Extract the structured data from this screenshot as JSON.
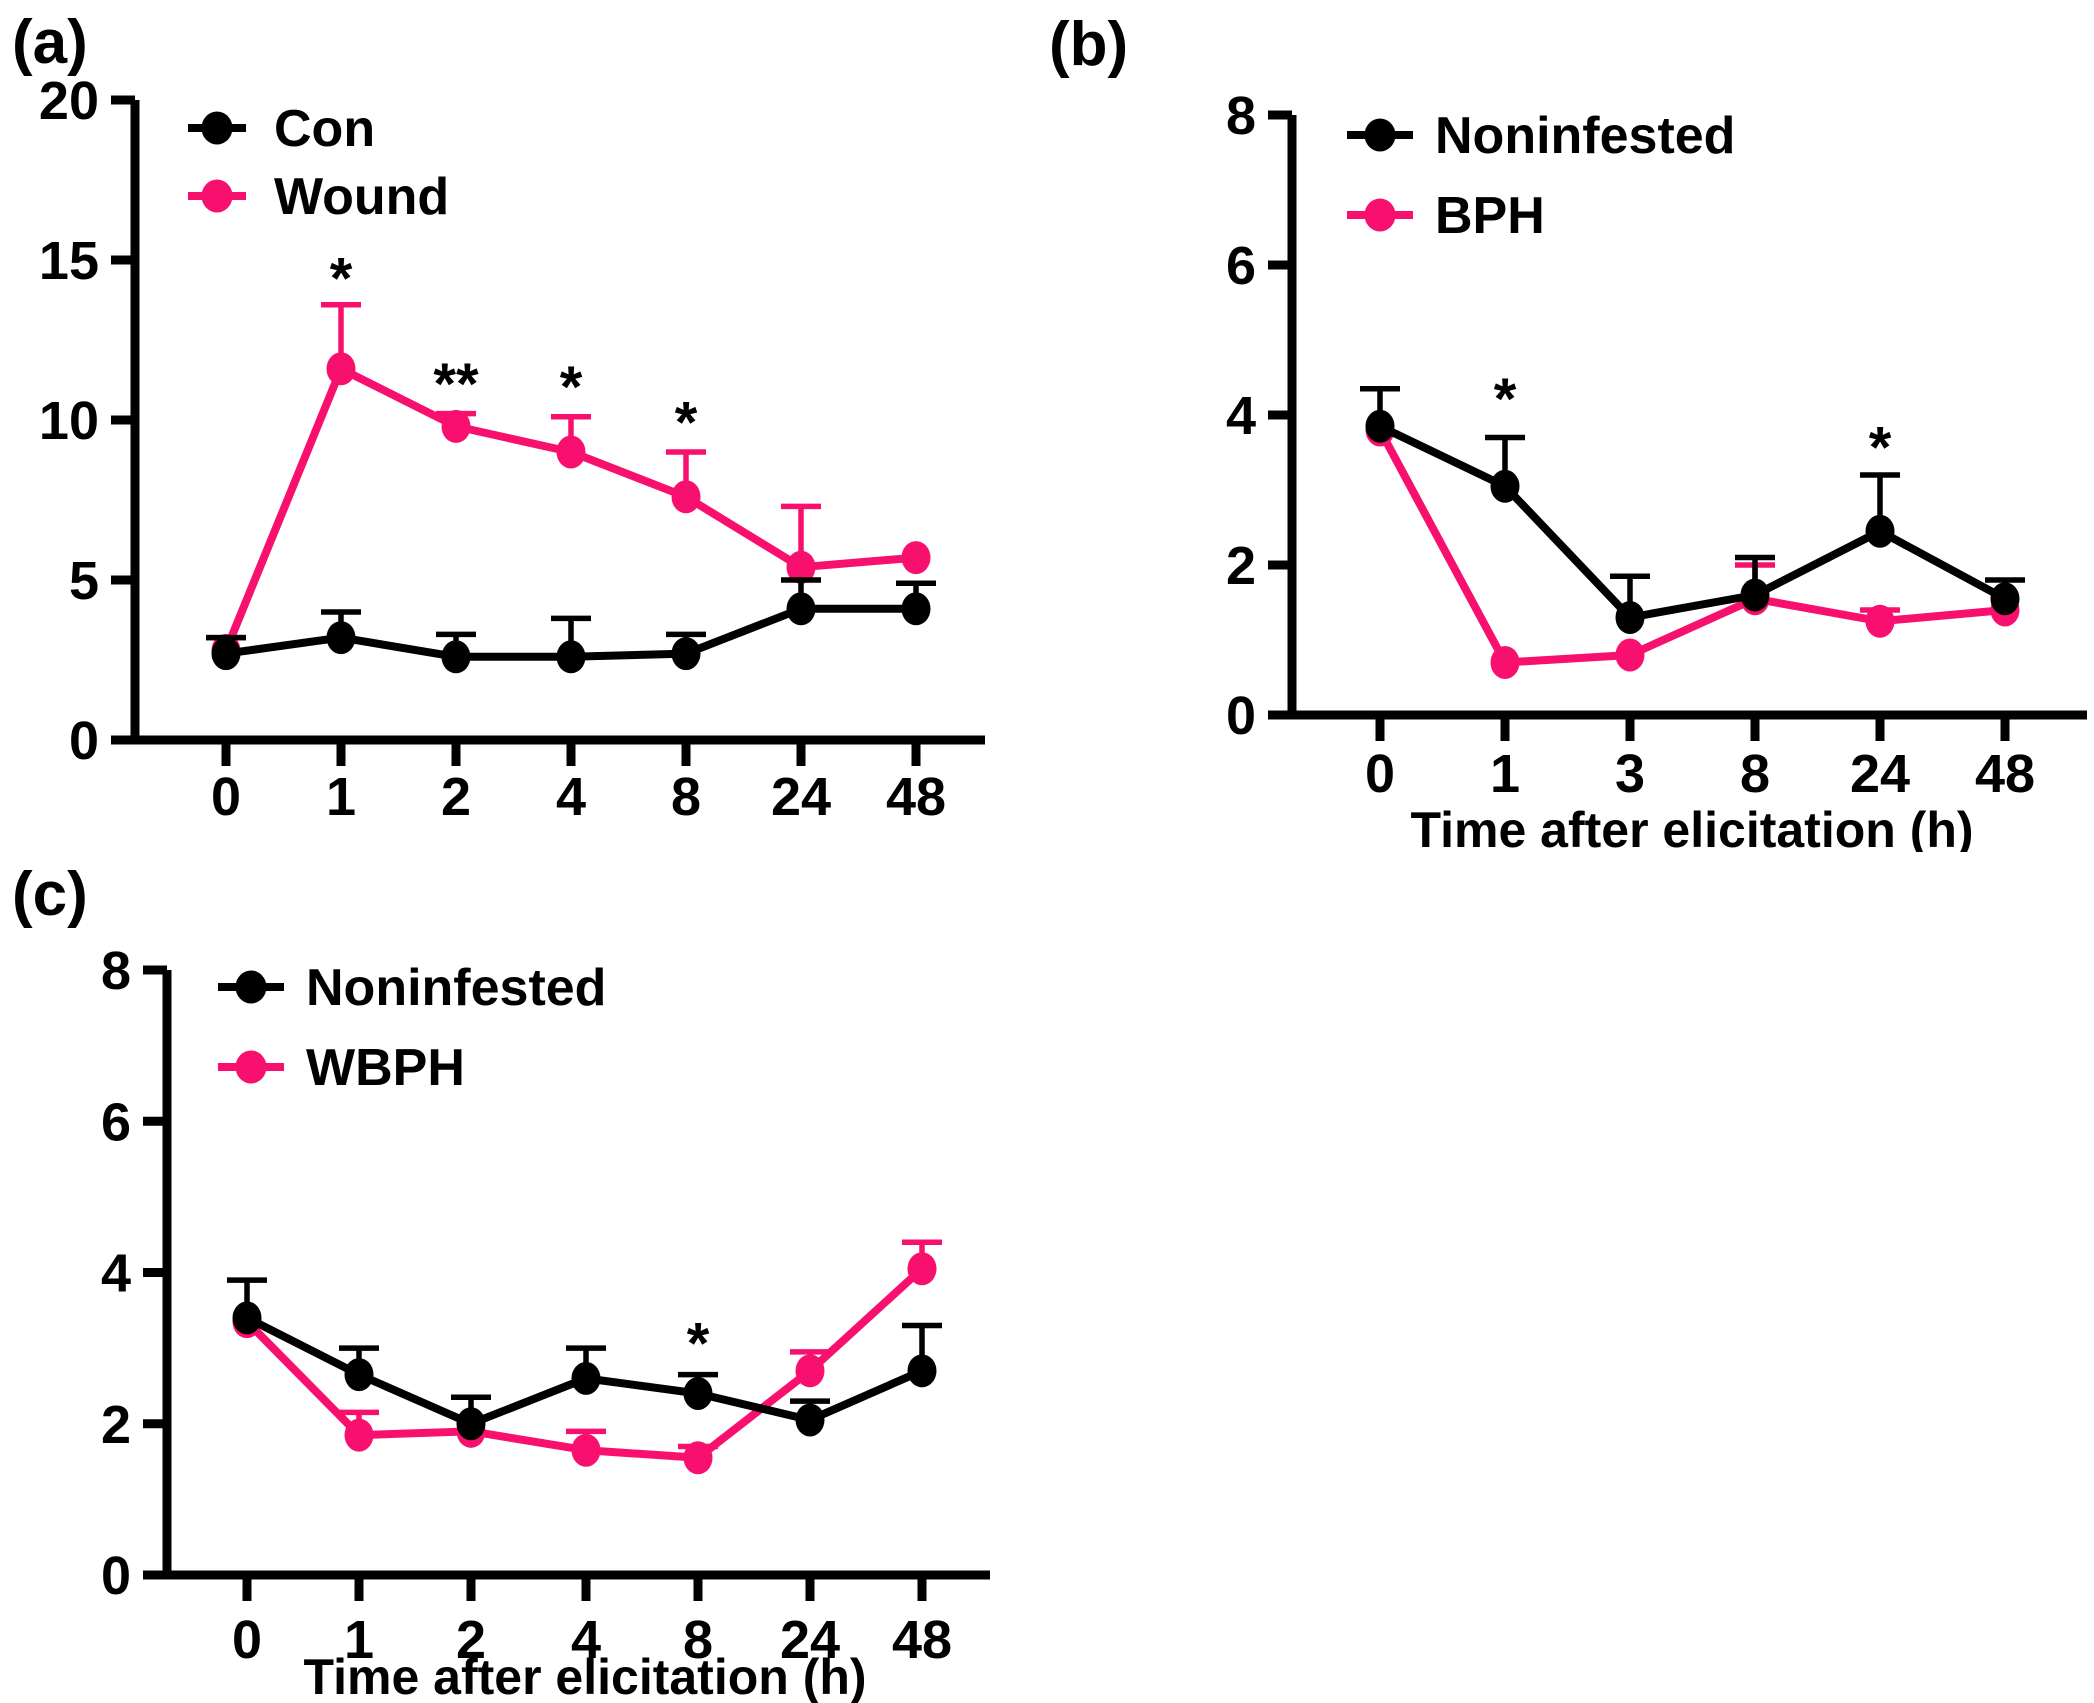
{
  "figure": {
    "background": "#FFFFFF",
    "description": "Three-panel line chart figure with error bars and significance asterisks"
  },
  "colors": {
    "series_black": "#000000",
    "series_pink": "#F8106E",
    "text": "#000000",
    "axis": "#000000"
  },
  "chart_data": [
    {
      "panel_label": "(a)",
      "type": "line",
      "categories": [
        "0",
        "1",
        "2",
        "4",
        "8",
        "24",
        "48"
      ],
      "xlabel": "",
      "ylabel": "",
      "ylim": [
        0,
        20
      ],
      "yticks": [
        "0",
        "5",
        "10",
        "15",
        "20"
      ],
      "grid": false,
      "legend_position": "top-left-inside",
      "error_bars": "upper",
      "series": [
        {
          "name": "Con",
          "color": "series_black",
          "values": [
            2.7,
            3.2,
            2.6,
            2.6,
            2.7,
            4.1,
            4.1
          ],
          "err_up": [
            0.5,
            0.8,
            0.7,
            1.2,
            0.6,
            0.9,
            0.8
          ]
        },
        {
          "name": "Wound",
          "color": "series_pink",
          "values": [
            2.8,
            11.6,
            9.8,
            9.0,
            7.6,
            5.4,
            5.7
          ],
          "err_up": [
            0.4,
            2.0,
            0.4,
            1.1,
            1.4,
            1.9,
            0.0
          ]
        }
      ],
      "annotations": [
        {
          "x_index": 1,
          "text": "*",
          "y": 13.8
        },
        {
          "x_index": 2,
          "text": "**",
          "y": 10.5
        },
        {
          "x_index": 3,
          "text": "*",
          "y": 10.4
        },
        {
          "x_index": 4,
          "text": "*",
          "y": 9.3
        }
      ]
    },
    {
      "panel_label": "(b)",
      "type": "line",
      "categories": [
        "0",
        "1",
        "3",
        "8",
        "24",
        "48"
      ],
      "xlabel": "Time after elicitation (h)",
      "ylabel": "",
      "ylim": [
        0,
        8
      ],
      "yticks": [
        "0",
        "2",
        "4",
        "6",
        "8"
      ],
      "grid": false,
      "legend_position": "top-left-inside",
      "error_bars": "upper",
      "series": [
        {
          "name": "Noninfested",
          "color": "series_black",
          "values": [
            3.85,
            3.05,
            1.3,
            1.6,
            2.45,
            1.55
          ],
          "err_up": [
            0.5,
            0.65,
            0.55,
            0.5,
            0.75,
            0.25
          ]
        },
        {
          "name": "BPH",
          "color": "series_pink",
          "values": [
            3.8,
            0.7,
            0.8,
            1.55,
            1.25,
            1.4
          ],
          "err_up": [
            0.0,
            0.0,
            0.0,
            0.45,
            0.15,
            0.0
          ]
        }
      ],
      "annotations": [
        {
          "x_index": 1,
          "text": "*",
          "y": 3.95
        },
        {
          "x_index": 4,
          "text": "*",
          "y": 3.3
        }
      ]
    },
    {
      "panel_label": "(c)",
      "type": "line",
      "categories": [
        "0",
        "1",
        "2",
        "4",
        "8",
        "24",
        "48"
      ],
      "xlabel": "Time after elicitation (h)",
      "ylabel": "",
      "ylim": [
        0,
        8
      ],
      "yticks": [
        "0",
        "2",
        "4",
        "6",
        "8"
      ],
      "grid": false,
      "legend_position": "top-left-inside",
      "error_bars": "upper",
      "series": [
        {
          "name": "Noninfested",
          "color": "series_black",
          "values": [
            3.4,
            2.65,
            2.0,
            2.6,
            2.4,
            2.05,
            2.7
          ],
          "err_up": [
            0.5,
            0.35,
            0.35,
            0.4,
            0.25,
            0.25,
            0.6
          ]
        },
        {
          "name": "WBPH",
          "color": "series_pink",
          "values": [
            3.35,
            1.85,
            1.9,
            1.65,
            1.55,
            2.7,
            4.05
          ],
          "err_up": [
            0.0,
            0.3,
            0.0,
            0.25,
            0.15,
            0.25,
            0.35
          ]
        }
      ],
      "annotations": [
        {
          "x_index": 4,
          "text": "*",
          "y": 2.8
        }
      ]
    }
  ]
}
